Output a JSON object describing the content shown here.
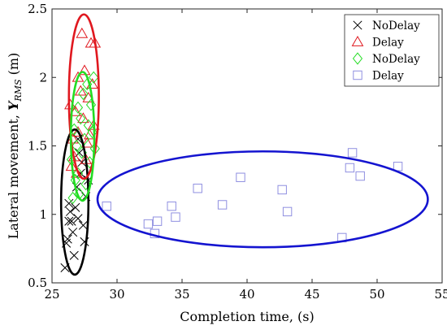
{
  "chart_data": {
    "type": "scatter",
    "title": "",
    "xlabel": "Completion time, (s)",
    "ylabel_prefix": "Lateral movement, ",
    "ylabel_symbol": "Y",
    "ylabel_subscript": "RMS",
    "ylabel_suffix": " (m)",
    "xlim": [
      25,
      55
    ],
    "ylim": [
      0.5,
      2.5
    ],
    "xticks": [
      25,
      30,
      35,
      40,
      45,
      50,
      55
    ],
    "yticks": [
      0.5,
      1,
      1.5,
      2,
      2.5
    ],
    "xtick_labels": [
      "25",
      "30",
      "35",
      "40",
      "45",
      "50",
      "55"
    ],
    "ytick_labels": [
      "0.5",
      "1",
      "1.5",
      "2",
      "2.5"
    ],
    "grid": false,
    "legend_position": "top-right",
    "series": [
      {
        "name": "NoDelay",
        "marker": "x",
        "color": "#000000",
        "ellipse": {
          "cx": 26.75,
          "cy": 1.09,
          "rx": 1.05,
          "ry": 0.53
        },
        "points": [
          [
            26.0,
            0.61
          ],
          [
            26.2,
            0.82
          ],
          [
            26.3,
            0.95
          ],
          [
            26.1,
            0.79
          ],
          [
            26.5,
            0.95
          ],
          [
            26.4,
            1.02
          ],
          [
            26.8,
            1.05
          ],
          [
            27.0,
            0.97
          ],
          [
            26.6,
            0.87
          ],
          [
            27.4,
            0.92
          ],
          [
            27.5,
            0.8
          ],
          [
            26.9,
            1.2
          ],
          [
            27.2,
            1.3
          ],
          [
            27.6,
            1.13
          ],
          [
            27.8,
            1.25
          ],
          [
            26.3,
            1.08
          ],
          [
            27.1,
            1.45
          ],
          [
            27.0,
            1.55
          ],
          [
            26.7,
            0.7
          ],
          [
            27.3,
            1.38
          ]
        ]
      },
      {
        "name": "Delay",
        "marker": "triangle",
        "color": "#e0181f",
        "ellipse": {
          "cx": 27.45,
          "cy": 1.86,
          "rx": 1.15,
          "ry": 0.6
        },
        "points": [
          [
            26.5,
            1.35
          ],
          [
            26.7,
            1.42
          ],
          [
            27.0,
            1.6
          ],
          [
            26.8,
            1.75
          ],
          [
            27.2,
            1.9
          ],
          [
            27.5,
            2.05
          ],
          [
            28.0,
            2.25
          ],
          [
            28.3,
            2.25
          ],
          [
            27.3,
            2.32
          ],
          [
            27.8,
            1.85
          ],
          [
            26.6,
            1.55
          ],
          [
            27.4,
            1.7
          ],
          [
            28.1,
            1.95
          ],
          [
            27.9,
            1.58
          ],
          [
            26.9,
            1.3
          ],
          [
            27.6,
            1.4
          ],
          [
            28.2,
            1.65
          ],
          [
            26.4,
            1.8
          ],
          [
            27.0,
            2.0
          ],
          [
            27.7,
            1.52
          ]
        ]
      },
      {
        "name": "NoDelay",
        "marker": "diamond",
        "color": "#22dd22",
        "ellipse": {
          "cx": 27.35,
          "cy": 1.57,
          "rx": 0.9,
          "ry": 0.47
        },
        "points": [
          [
            26.6,
            1.12
          ],
          [
            26.8,
            1.25
          ],
          [
            27.0,
            1.3
          ],
          [
            27.3,
            1.45
          ],
          [
            27.5,
            1.55
          ],
          [
            27.8,
            1.65
          ],
          [
            28.0,
            1.8
          ],
          [
            28.2,
            2.0
          ],
          [
            27.2,
            1.7
          ],
          [
            26.9,
            1.5
          ],
          [
            27.6,
            1.22
          ],
          [
            27.9,
            1.38
          ],
          [
            26.7,
            1.62
          ],
          [
            27.4,
            1.88
          ],
          [
            28.1,
            1.6
          ],
          [
            26.5,
            1.4
          ],
          [
            27.1,
            1.15
          ],
          [
            27.7,
            1.95
          ],
          [
            27.0,
            1.78
          ],
          [
            28.3,
            1.48
          ]
        ]
      },
      {
        "name": "Delay",
        "marker": "square",
        "color": "#8f8fe0",
        "ellipse_color": "#1414d0",
        "ellipse": {
          "cx": 41.2,
          "cy": 1.11,
          "rx": 12.7,
          "ry": 0.35
        },
        "points": [
          [
            29.2,
            1.06
          ],
          [
            32.4,
            0.93
          ],
          [
            32.9,
            0.86
          ],
          [
            33.1,
            0.95
          ],
          [
            34.2,
            1.06
          ],
          [
            34.5,
            0.98
          ],
          [
            36.2,
            1.19
          ],
          [
            38.1,
            1.07
          ],
          [
            39.5,
            1.27
          ],
          [
            42.7,
            1.18
          ],
          [
            43.1,
            1.02
          ],
          [
            47.3,
            0.83
          ],
          [
            47.9,
            1.34
          ],
          [
            48.1,
            1.45
          ],
          [
            48.7,
            1.28
          ],
          [
            51.6,
            1.35
          ]
        ]
      }
    ]
  }
}
